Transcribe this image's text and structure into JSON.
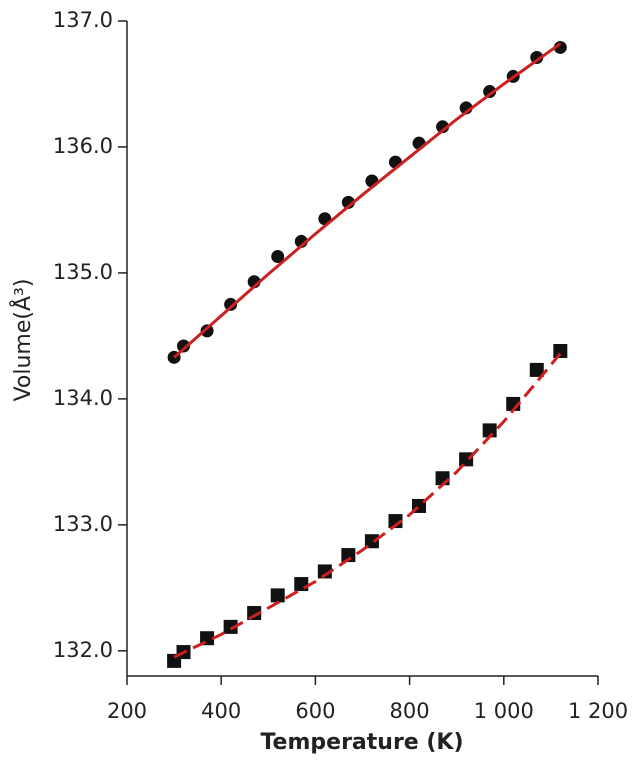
{
  "chart_data": {
    "type": "scatter",
    "x_label": "Temperature (K)",
    "y_label": "Volume(Å³)",
    "xlim": [
      200,
      1200
    ],
    "ylim": [
      131.8,
      137.0
    ],
    "xticks": [
      200,
      400,
      600,
      800,
      {
        "value": 1000,
        "label": "1 000"
      },
      {
        "value": 1200,
        "label": "1 200"
      }
    ],
    "yticks": [
      {
        "value": 132,
        "label": "132.0"
      },
      {
        "value": 133,
        "label": "133.0"
      },
      {
        "value": 134,
        "label": "134.0"
      },
      {
        "value": 135,
        "label": "135.0"
      },
      {
        "value": 136,
        "label": "136.0"
      },
      {
        "value": 137,
        "label": "137.0"
      }
    ],
    "series": [
      {
        "marker": "circle",
        "color": "#111111",
        "x": [
          300,
          320,
          370,
          420,
          470,
          520,
          570,
          620,
          670,
          720,
          770,
          820,
          870,
          920,
          970,
          1020,
          1070,
          1120
        ],
        "values": [
          134.33,
          134.42,
          134.54,
          134.75,
          134.93,
          135.13,
          135.25,
          135.43,
          135.56,
          135.73,
          135.88,
          136.03,
          136.16,
          136.31,
          136.44,
          136.56,
          136.71,
          136.79
        ]
      },
      {
        "marker": "square",
        "color": "#111111",
        "x": [
          300,
          320,
          370,
          420,
          470,
          520,
          570,
          620,
          670,
          720,
          770,
          820,
          870,
          920,
          970,
          1020,
          1070,
          1120
        ],
        "values": [
          131.92,
          131.99,
          132.1,
          132.19,
          132.3,
          132.44,
          132.53,
          132.63,
          132.76,
          132.87,
          133.03,
          133.15,
          133.37,
          133.52,
          133.75,
          133.96,
          134.23,
          134.38
        ]
      },
      {
        "marker": "line",
        "color": "#cc1f1f",
        "dash": false,
        "x": [
          300,
          400,
          500,
          600,
          700,
          800,
          900,
          1000,
          1120
        ],
        "values": [
          134.33,
          134.66,
          134.99,
          135.31,
          135.62,
          135.92,
          136.22,
          136.5,
          136.82
        ]
      },
      {
        "marker": "line",
        "color": "#cc1f1f",
        "dash": true,
        "x": [
          300,
          400,
          500,
          600,
          700,
          800,
          900,
          1000,
          1120
        ],
        "values": [
          131.95,
          132.13,
          132.34,
          132.55,
          132.8,
          133.08,
          133.42,
          133.82,
          134.36
        ]
      }
    ]
  }
}
